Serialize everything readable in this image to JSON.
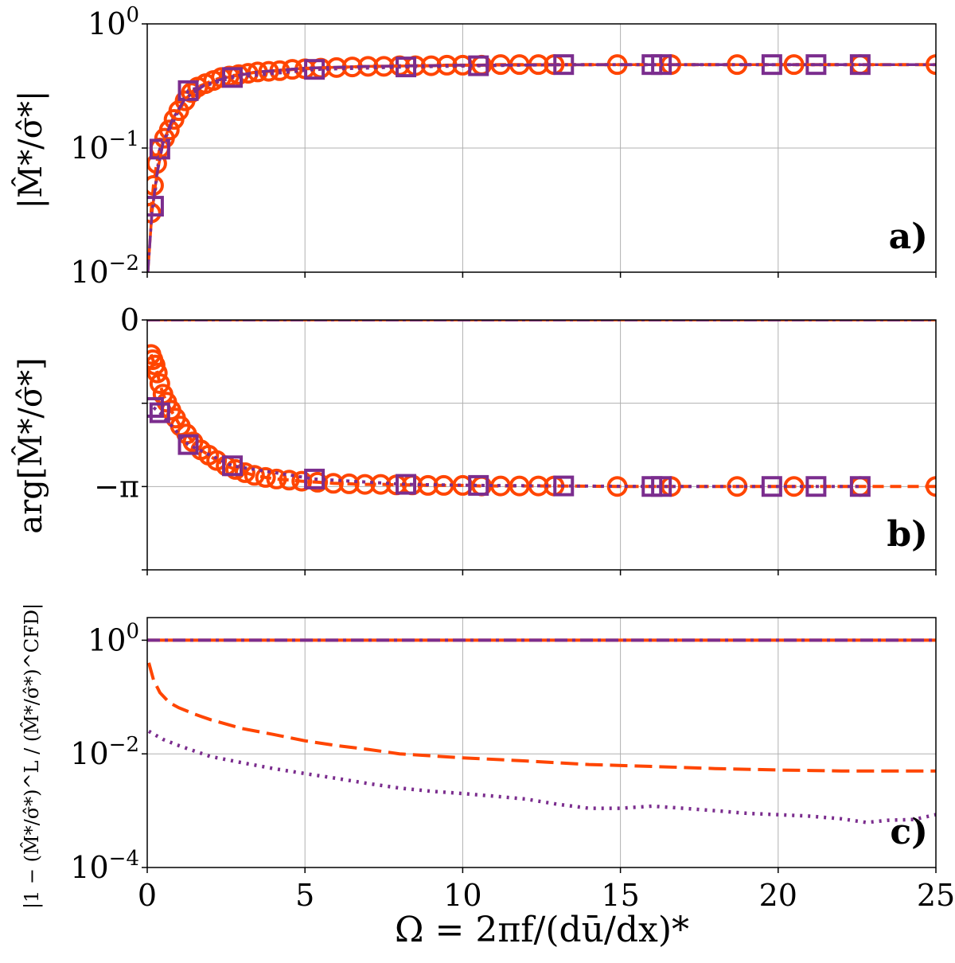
{
  "colors": {
    "orange": "#ff4500",
    "purple": "#7b2d8e",
    "grid": "#b0b0b0",
    "axis": "#000000"
  },
  "x_label": "Ω = 2πf/(dū/dx)*",
  "x_ticks": [
    "0",
    "5",
    "10",
    "15",
    "20",
    "25"
  ],
  "chart_data": [
    {
      "type": "scatter",
      "panel_label": "a)",
      "ylabel": "|M̂*/σ̂*|",
      "yscale": "log",
      "xlim": [
        0,
        25
      ],
      "ylim": [
        0.01,
        1
      ],
      "y_ticks": [
        {
          "value": 1,
          "base": "10",
          "exp": "0"
        },
        {
          "value": 0.1,
          "base": "10",
          "exp": "−1"
        },
        {
          "value": 0.01,
          "base": "10",
          "exp": "−2"
        }
      ],
      "grid": true,
      "series": [
        {
          "name": "orange-circles",
          "color": "orange",
          "marker": "circle",
          "x": [
            0.12,
            0.2,
            0.3,
            0.4,
            0.55,
            0.7,
            0.85,
            1.0,
            1.2,
            1.4,
            1.6,
            1.85,
            2.1,
            2.35,
            2.6,
            2.9,
            3.2,
            3.5,
            3.85,
            4.2,
            4.6,
            5.0,
            5.5,
            6.0,
            6.5,
            7.0,
            7.5,
            8.0,
            8.5,
            9.0,
            9.5,
            10.0,
            10.6,
            11.2,
            11.8,
            12.4,
            12.9,
            14.9,
            16.6,
            18.7,
            20.5,
            22.6,
            25.0
          ],
          "y": [
            0.03,
            0.05,
            0.075,
            0.1,
            0.12,
            0.14,
            0.17,
            0.2,
            0.24,
            0.28,
            0.31,
            0.33,
            0.35,
            0.37,
            0.38,
            0.39,
            0.4,
            0.41,
            0.415,
            0.42,
            0.43,
            0.435,
            0.44,
            0.445,
            0.45,
            0.455,
            0.455,
            0.46,
            0.46,
            0.46,
            0.465,
            0.465,
            0.465,
            0.47,
            0.47,
            0.47,
            0.47,
            0.47,
            0.47,
            0.47,
            0.47,
            0.47,
            0.47
          ]
        },
        {
          "name": "purple-squares",
          "color": "purple",
          "marker": "square",
          "x": [
            0.2,
            0.4,
            1.3,
            2.7,
            5.3,
            8.2,
            10.5,
            13.2,
            16.0,
            16.3,
            19.8,
            21.2,
            22.6
          ],
          "y": [
            0.034,
            0.098,
            0.29,
            0.37,
            0.43,
            0.45,
            0.46,
            0.47,
            0.47,
            0.47,
            0.47,
            0.47,
            0.47
          ]
        },
        {
          "name": "purple-dashdot",
          "color": "purple",
          "marker": "line-dashdot",
          "x": [
            0.02,
            0.15,
            0.3,
            0.5,
            0.8,
            1.2,
            1.8,
            2.5,
            3.5,
            5,
            7,
            10,
            15,
            20,
            25
          ],
          "y": [
            0.01,
            0.03,
            0.06,
            0.11,
            0.17,
            0.25,
            0.32,
            0.37,
            0.41,
            0.44,
            0.455,
            0.465,
            0.47,
            0.47,
            0.47
          ]
        }
      ]
    },
    {
      "type": "scatter",
      "panel_label": "b)",
      "ylabel": "arg[M̂*/σ̂*]",
      "yscale": "linear",
      "xlim": [
        0,
        25
      ],
      "ylim": [
        -4.712,
        0
      ],
      "y_ticks": [
        {
          "value": 0,
          "label": "0"
        },
        {
          "value": -3.1416,
          "label": "−π"
        }
      ],
      "y_grid_values": [
        0,
        -1.5708,
        -3.1416,
        -4.712
      ],
      "grid": true,
      "series": [
        {
          "name": "zero-line",
          "color": "purple",
          "marker": "line-dashdot",
          "x": [
            0,
            25
          ],
          "y": [
            0,
            0
          ]
        },
        {
          "name": "orange-circles",
          "color": "orange",
          "marker": "circle",
          "x": [
            0.12,
            0.18,
            0.25,
            0.32,
            0.4,
            0.5,
            0.62,
            0.75,
            0.9,
            1.05,
            1.25,
            1.45,
            1.7,
            1.95,
            2.2,
            2.5,
            2.8,
            3.1,
            3.4,
            3.75,
            4.1,
            4.5,
            4.9,
            5.4,
            5.9,
            6.4,
            6.9,
            7.4,
            7.9,
            8.4,
            8.9,
            9.4,
            10.0,
            10.6,
            11.2,
            11.8,
            12.4,
            12.9,
            14.9,
            16.6,
            18.7,
            20.5,
            22.6,
            25.0
          ],
          "y": [
            -0.65,
            -0.75,
            -0.85,
            -1.0,
            -1.2,
            -1.4,
            -1.55,
            -1.7,
            -1.85,
            -2.0,
            -2.15,
            -2.3,
            -2.45,
            -2.55,
            -2.65,
            -2.75,
            -2.82,
            -2.88,
            -2.93,
            -2.97,
            -3.0,
            -3.02,
            -3.04,
            -3.06,
            -3.08,
            -3.09,
            -3.1,
            -3.1,
            -3.11,
            -3.11,
            -3.12,
            -3.12,
            -3.12,
            -3.13,
            -3.13,
            -3.13,
            -3.13,
            -3.13,
            -3.14,
            -3.14,
            -3.14,
            -3.14,
            -3.14,
            -3.14
          ]
        },
        {
          "name": "purple-squares",
          "color": "purple",
          "marker": "square",
          "x": [
            0.2,
            0.4,
            1.3,
            2.7,
            5.3,
            8.2,
            10.5,
            13.2,
            16.0,
            16.3,
            19.8,
            21.2,
            22.6
          ],
          "y": [
            -1.65,
            -1.75,
            -2.35,
            -2.75,
            -3.0,
            -3.1,
            -3.12,
            -3.13,
            -3.14,
            -3.14,
            -3.14,
            -3.14,
            -3.14
          ]
        }
      ]
    },
    {
      "type": "line",
      "panel_label": "c)",
      "ylabel": "|1 − (M̂*/σ̂*)^L / (M̂*/σ̂*)^CFD|",
      "yscale": "log",
      "xlim": [
        0,
        25
      ],
      "ylim": [
        0.0001,
        2.5
      ],
      "y_ticks": [
        {
          "value": 1,
          "base": "10",
          "exp": "0"
        },
        {
          "value": 0.01,
          "base": "10",
          "exp": "−2"
        },
        {
          "value": 0.0001,
          "base": "10",
          "exp": "−4"
        }
      ],
      "y_grid_values": [
        1,
        0.01
      ],
      "grid": true,
      "series": [
        {
          "name": "orange-dashdot",
          "color": "orange",
          "style": "dashdot",
          "x": [
            0,
            25
          ],
          "y": [
            1,
            1
          ]
        },
        {
          "name": "purple-dashdot",
          "color": "purple",
          "style": "dashdot",
          "x": [
            0,
            25
          ],
          "y": [
            1,
            1
          ]
        },
        {
          "name": "orange-dashed",
          "color": "orange",
          "style": "dashed",
          "x": [
            0.05,
            0.2,
            0.4,
            0.7,
            1.0,
            1.5,
            2.0,
            3.0,
            4.0,
            5.0,
            6.0,
            7.0,
            8.0,
            10.0,
            12.0,
            14.0,
            16.0,
            18.0,
            20.0,
            22.0,
            25.0
          ],
          "y": [
            0.4,
            0.2,
            0.12,
            0.08,
            0.065,
            0.05,
            0.04,
            0.028,
            0.022,
            0.017,
            0.014,
            0.012,
            0.01,
            0.0085,
            0.0075,
            0.0065,
            0.006,
            0.0055,
            0.0052,
            0.005,
            0.005
          ]
        },
        {
          "name": "purple-dotted",
          "color": "purple",
          "style": "dotted",
          "x": [
            0.05,
            0.5,
            1.0,
            2.0,
            3.0,
            4.0,
            5.0,
            6.0,
            7.0,
            8.0,
            9.0,
            10.0,
            11.0,
            12.0,
            13.0,
            14.0,
            15.0,
            16.0,
            17.0,
            18.0,
            19.0,
            20.0,
            21.0,
            22.0,
            22.8,
            23.5,
            24.3,
            25.0
          ],
          "y": [
            0.025,
            0.018,
            0.014,
            0.009,
            0.007,
            0.0055,
            0.0045,
            0.0037,
            0.003,
            0.0025,
            0.0022,
            0.002,
            0.0018,
            0.0016,
            0.0013,
            0.0011,
            0.0011,
            0.0012,
            0.0011,
            0.001,
            0.0009,
            0.00085,
            0.0008,
            0.00072,
            0.00062,
            0.00068,
            0.0007,
            0.00085
          ]
        }
      ]
    }
  ]
}
